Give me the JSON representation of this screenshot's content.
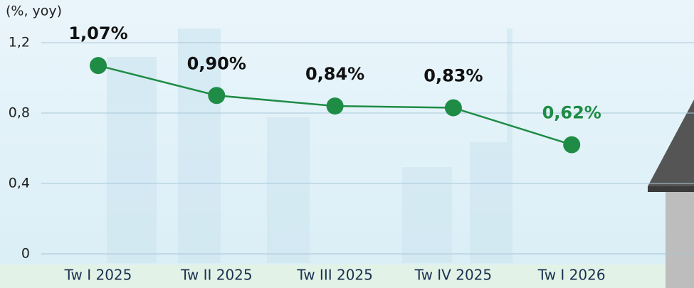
{
  "chart_data": {
    "type": "line",
    "y_label": "(%, yoy)",
    "categories": [
      "Tw I 2025",
      "Tw II 2025",
      "Tw III 2025",
      "Tw IV 2025",
      "Tw I 2026"
    ],
    "series": [
      {
        "color": "#1e8c45",
        "values": [
          1.07,
          0.9,
          0.84,
          0.83,
          0.62
        ],
        "value_labels": [
          "1,07%",
          "0,90%",
          "0,84%",
          "0,83%",
          "0,62%"
        ],
        "value_label_colors": [
          "#111111",
          "#111111",
          "#111111",
          "#111111",
          "#1e8c45"
        ]
      }
    ],
    "ylim": [
      0,
      1.2
    ],
    "yticks": [
      0,
      {
        "value": 0.4,
        "label": "0,4"
      },
      {
        "value": 0.8,
        "label": "0,8"
      },
      {
        "value": 1.2,
        "label": "1,2"
      }
    ],
    "grid": true
  }
}
